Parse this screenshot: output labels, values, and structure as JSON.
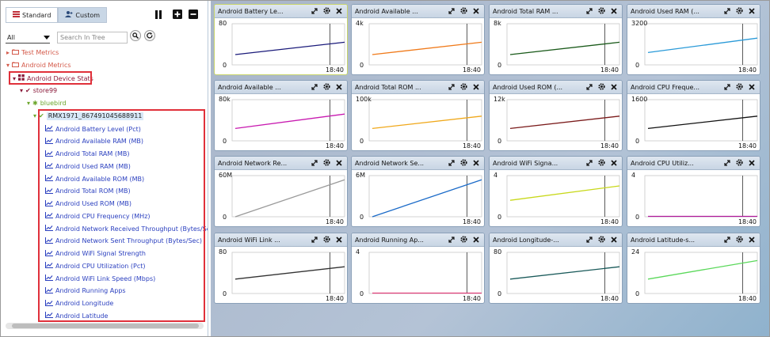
{
  "left_panel": {
    "tabs": [
      {
        "label": "Standard",
        "active": true
      },
      {
        "label": "Custom",
        "active": false
      }
    ],
    "filter_select": {
      "value": "All"
    },
    "search": {
      "placeholder": "Search In Tree"
    },
    "tree": {
      "test_metrics": "Test Metrics",
      "android_metrics": "Android Metrics",
      "android_device_stats": "Android Device Stats",
      "store": "store99",
      "group": "bluebird",
      "device": "RMX1971_867491045688911",
      "metrics": [
        "Android Battery Level (Pct)",
        "Android Available RAM (MB)",
        "Android Total RAM (MB)",
        "Android Used RAM (MB)",
        "Android Available ROM (MB)",
        "Android Total ROM (MB)",
        "Android Used ROM (MB)",
        "Android CPU Frequency (MHz)",
        "Android Network Received Throughput (Bytes/Sec)",
        "Android Network Sent Throughput (Bytes/Sec)",
        "Android WiFi Signal Strength",
        "Android CPU Utilization (Pct)",
        "Android WiFi Link Speed (Mbps)",
        "Android Running Apps",
        "Android Longitude",
        "Android Latitude"
      ]
    }
  },
  "dashboard": {
    "cards": [
      {
        "title": "Android Battery Le...",
        "ymax": "80",
        "ymin": "0",
        "xtick": "18:40",
        "color": "#1a1a7a",
        "trend": [
          0.25,
          0.55
        ]
      },
      {
        "title": "Android Available ...",
        "ymax": "4k",
        "ymin": "0",
        "xtick": "18:40",
        "color": "#f07a1a",
        "trend": [
          0.25,
          0.55
        ]
      },
      {
        "title": "Android Total RAM ...",
        "ymax": "8k",
        "ymin": "0",
        "xtick": "18:40",
        "color": "#1a5a1a",
        "trend": [
          0.25,
          0.55
        ]
      },
      {
        "title": "Android Used RAM (...",
        "ymax": "3200",
        "ymin": "0",
        "xtick": "18:40",
        "color": "#2a9ad8",
        "trend": [
          0.3,
          0.65
        ]
      },
      {
        "title": "Android Available ...",
        "ymax": "80k",
        "ymin": "0",
        "xtick": "18:40",
        "color": "#c81ab0",
        "trend": [
          0.3,
          0.65
        ]
      },
      {
        "title": "Android Total ROM ...",
        "ymax": "100k",
        "ymin": "0",
        "xtick": "18:40",
        "color": "#f0a81a",
        "trend": [
          0.3,
          0.6
        ]
      },
      {
        "title": "Android Used ROM (...",
        "ymax": "12k",
        "ymin": "0",
        "xtick": "18:40",
        "color": "#7a1a1a",
        "trend": [
          0.3,
          0.6
        ]
      },
      {
        "title": "Android CPU Freque...",
        "ymax": "1600",
        "ymin": "0",
        "xtick": "18:40",
        "color": "#111111",
        "trend": [
          0.3,
          0.6
        ]
      },
      {
        "title": "Android Network Re...",
        "ymax": "60M",
        "ymin": "0",
        "xtick": "18:40",
        "color": "#9a9a9a",
        "trend": [
          0.0,
          0.9
        ]
      },
      {
        "title": "Android Network Se...",
        "ymax": "6M",
        "ymin": "0",
        "xtick": "18:40",
        "color": "#1a6ac8",
        "trend": [
          0.0,
          0.9
        ]
      },
      {
        "title": "Android WiFi Signa...",
        "ymax": "4",
        "ymin": "0",
        "xtick": "18:40",
        "color": "#c8d81a",
        "trend": [
          0.4,
          0.75
        ]
      },
      {
        "title": "Android CPU Utiliz...",
        "ymax": "4",
        "ymin": "0",
        "xtick": "18:40",
        "color": "#b01a9a",
        "trend": [
          0.0,
          0.0
        ]
      },
      {
        "title": "Android WiFi Link ...",
        "ymax": "80",
        "ymin": "0",
        "xtick": "18:40",
        "color": "#333333",
        "trend": [
          0.35,
          0.65
        ]
      },
      {
        "title": "Android Running Ap...",
        "ymax": "4",
        "ymin": "0",
        "xtick": "18:40",
        "color": "#e0407a",
        "trend": [
          0.0,
          0.0
        ]
      },
      {
        "title": "Android Longitude-...",
        "ymax": "80",
        "ymin": "0",
        "xtick": "18:40",
        "color": "#1a5a5a",
        "trend": [
          0.35,
          0.65
        ]
      },
      {
        "title": "Android Latitude-s...",
        "ymax": "24",
        "ymin": "0",
        "xtick": "18:40",
        "color": "#5ad85a",
        "trend": [
          0.35,
          0.8
        ]
      }
    ]
  }
}
